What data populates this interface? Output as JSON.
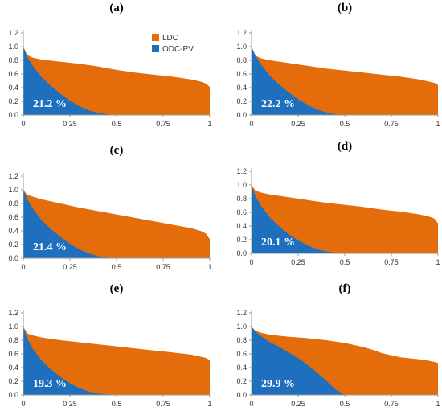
{
  "colors": {
    "ldc": "#E46C0A",
    "odc": "#1F6FBF",
    "axis": "#9a9a9a"
  },
  "chart_data": [
    {
      "panel": "(a)",
      "type": "area",
      "xlim": [
        0,
        1
      ],
      "ylim": [
        0,
        1.2
      ],
      "xticks": [
        "0",
        "0.25",
        "0.5",
        "0.75",
        "1"
      ],
      "yticks": [
        "0.0",
        "0.2",
        "0.4",
        "0.6",
        "0.8",
        "1.0",
        "1.2"
      ],
      "legend": {
        "position": "top-right-inside",
        "entries": [
          {
            "name": "LDC",
            "color": "#E46C0A"
          },
          {
            "name": "ODC-PV",
            "color": "#1F6FBF"
          }
        ]
      },
      "annotation": "21.2 %",
      "series": [
        {
          "name": "LDC",
          "x": [
            0,
            0.02,
            0.05,
            0.1,
            0.2,
            0.3,
            0.4,
            0.5,
            0.6,
            0.7,
            0.8,
            0.9,
            0.95,
            0.98,
            1.0
          ],
          "y": [
            1.0,
            0.88,
            0.84,
            0.81,
            0.78,
            0.75,
            0.71,
            0.66,
            0.62,
            0.59,
            0.56,
            0.52,
            0.49,
            0.46,
            0.41
          ]
        },
        {
          "name": "ODC-PV",
          "x": [
            0,
            0.02,
            0.05,
            0.1,
            0.15,
            0.2,
            0.25,
            0.3,
            0.35,
            0.4,
            0.45,
            0.5,
            1.0
          ],
          "y": [
            1.0,
            0.86,
            0.72,
            0.55,
            0.42,
            0.31,
            0.21,
            0.13,
            0.07,
            0.03,
            0.01,
            0.0,
            0.0
          ]
        }
      ]
    },
    {
      "panel": "(b)",
      "type": "area",
      "xlim": [
        0,
        1
      ],
      "ylim": [
        0,
        1.2
      ],
      "xticks": [
        "0",
        "0.25",
        "0.5",
        "0.75",
        "1"
      ],
      "yticks": [
        "0.0",
        "0.2",
        "0.4",
        "0.6",
        "0.8",
        "1.0",
        "1.2"
      ],
      "annotation": "22.2 %",
      "series": [
        {
          "name": "LDC",
          "x": [
            0,
            0.02,
            0.05,
            0.1,
            0.2,
            0.3,
            0.4,
            0.5,
            0.6,
            0.7,
            0.8,
            0.9,
            0.95,
            0.98,
            1.0
          ],
          "y": [
            1.0,
            0.87,
            0.83,
            0.8,
            0.76,
            0.72,
            0.68,
            0.65,
            0.62,
            0.59,
            0.56,
            0.52,
            0.49,
            0.47,
            0.44
          ]
        },
        {
          "name": "ODC-PV",
          "x": [
            0,
            0.02,
            0.05,
            0.1,
            0.15,
            0.2,
            0.25,
            0.3,
            0.35,
            0.4,
            0.45,
            0.5,
            1.0
          ],
          "y": [
            1.0,
            0.87,
            0.74,
            0.57,
            0.44,
            0.33,
            0.23,
            0.15,
            0.08,
            0.04,
            0.01,
            0.0,
            0.0
          ]
        }
      ]
    },
    {
      "panel": "(c)",
      "type": "area",
      "xlim": [
        0,
        1
      ],
      "ylim": [
        0,
        1.2
      ],
      "xticks": [
        "0",
        "0.25",
        "0.5",
        "0.75",
        "1"
      ],
      "yticks": [
        "0.0",
        "0.2",
        "0.4",
        "0.6",
        "0.8",
        "1.0",
        "1.2"
      ],
      "annotation": "21.4 %",
      "series": [
        {
          "name": "LDC",
          "x": [
            0,
            0.02,
            0.05,
            0.1,
            0.2,
            0.3,
            0.4,
            0.5,
            0.6,
            0.7,
            0.8,
            0.9,
            0.95,
            0.98,
            1.0
          ],
          "y": [
            1.0,
            0.93,
            0.9,
            0.86,
            0.8,
            0.74,
            0.69,
            0.64,
            0.59,
            0.54,
            0.49,
            0.44,
            0.4,
            0.36,
            0.28
          ]
        },
        {
          "name": "ODC-PV",
          "x": [
            0,
            0.02,
            0.05,
            0.1,
            0.15,
            0.2,
            0.25,
            0.3,
            0.35,
            0.4,
            0.45,
            0.5,
            1.0
          ],
          "y": [
            1.0,
            0.87,
            0.73,
            0.55,
            0.42,
            0.31,
            0.21,
            0.13,
            0.07,
            0.03,
            0.01,
            0.0,
            0.0
          ]
        }
      ]
    },
    {
      "panel": "(d)",
      "type": "area",
      "xlim": [
        0,
        1
      ],
      "ylim": [
        0,
        1.2
      ],
      "xticks": [
        "0",
        "0.25",
        "0.5",
        "0.75",
        "1"
      ],
      "yticks": [
        "0.0",
        "0.2",
        "0.4",
        "0.6",
        "0.8",
        "1.0",
        "1.2"
      ],
      "annotation": "20.1 %",
      "series": [
        {
          "name": "LDC",
          "x": [
            0,
            0.02,
            0.05,
            0.1,
            0.2,
            0.3,
            0.4,
            0.5,
            0.6,
            0.7,
            0.8,
            0.9,
            0.95,
            0.98,
            1.0
          ],
          "y": [
            1.0,
            0.92,
            0.89,
            0.86,
            0.82,
            0.78,
            0.74,
            0.71,
            0.68,
            0.64,
            0.61,
            0.57,
            0.54,
            0.51,
            0.44
          ]
        },
        {
          "name": "ODC-PV",
          "x": [
            0,
            0.02,
            0.05,
            0.1,
            0.15,
            0.2,
            0.25,
            0.3,
            0.35,
            0.4,
            0.45,
            0.5,
            1.0
          ],
          "y": [
            1.0,
            0.84,
            0.7,
            0.52,
            0.39,
            0.28,
            0.19,
            0.12,
            0.06,
            0.03,
            0.01,
            0.0,
            0.0
          ]
        }
      ]
    },
    {
      "panel": "(e)",
      "type": "area",
      "xlim": [
        0,
        1
      ],
      "ylim": [
        0,
        1.2
      ],
      "xticks": [
        "0",
        "0.25",
        "0.5",
        "0.75",
        "1"
      ],
      "yticks": [
        "0.0",
        "0.2",
        "0.4",
        "0.6",
        "0.8",
        "1.0",
        "1.2"
      ],
      "annotation": "19.3 %",
      "series": [
        {
          "name": "LDC",
          "x": [
            0,
            0.02,
            0.05,
            0.1,
            0.2,
            0.3,
            0.4,
            0.5,
            0.6,
            0.7,
            0.8,
            0.9,
            0.95,
            0.98,
            1.0
          ],
          "y": [
            1.0,
            0.9,
            0.87,
            0.84,
            0.8,
            0.77,
            0.74,
            0.71,
            0.68,
            0.65,
            0.62,
            0.59,
            0.56,
            0.54,
            0.51
          ]
        },
        {
          "name": "ODC-PV",
          "x": [
            0,
            0.02,
            0.05,
            0.1,
            0.15,
            0.2,
            0.25,
            0.3,
            0.35,
            0.4,
            0.45,
            0.5,
            1.0
          ],
          "y": [
            1.0,
            0.83,
            0.68,
            0.5,
            0.37,
            0.26,
            0.17,
            0.1,
            0.05,
            0.02,
            0.01,
            0.0,
            0.0
          ]
        }
      ]
    },
    {
      "panel": "(f)",
      "type": "area",
      "xlim": [
        0,
        1
      ],
      "ylim": [
        0,
        1.2
      ],
      "xticks": [
        "0",
        "0.25",
        "0.5",
        "0.75",
        "1"
      ],
      "yticks": [
        "0.0",
        "0.2",
        "0.4",
        "0.6",
        "0.8",
        "1.0",
        "1.2"
      ],
      "annotation": "29.9 %",
      "series": [
        {
          "name": "LDC",
          "x": [
            0,
            0.02,
            0.05,
            0.1,
            0.2,
            0.3,
            0.4,
            0.5,
            0.6,
            0.65,
            0.7,
            0.75,
            0.8,
            0.9,
            0.95,
            1.0
          ],
          "y": [
            1.0,
            0.94,
            0.91,
            0.88,
            0.85,
            0.83,
            0.8,
            0.76,
            0.7,
            0.66,
            0.61,
            0.58,
            0.55,
            0.52,
            0.5,
            0.47
          ]
        },
        {
          "name": "ODC-PV",
          "x": [
            0,
            0.02,
            0.05,
            0.1,
            0.15,
            0.2,
            0.25,
            0.3,
            0.35,
            0.4,
            0.45,
            0.5,
            1.0
          ],
          "y": [
            1.0,
            0.93,
            0.86,
            0.77,
            0.7,
            0.62,
            0.54,
            0.44,
            0.33,
            0.21,
            0.08,
            0.0,
            0.0
          ]
        }
      ]
    }
  ]
}
